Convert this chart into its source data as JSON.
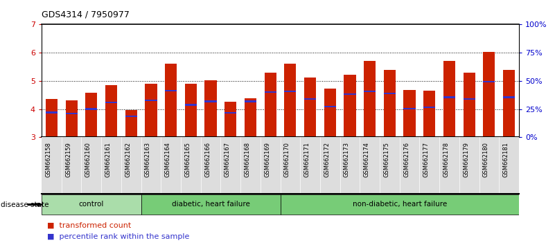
{
  "title": "GDS4314 / 7950977",
  "samples": [
    "GSM662158",
    "GSM662159",
    "GSM662160",
    "GSM662161",
    "GSM662162",
    "GSM662163",
    "GSM662164",
    "GSM662165",
    "GSM662166",
    "GSM662167",
    "GSM662168",
    "GSM662169",
    "GSM662170",
    "GSM662171",
    "GSM662172",
    "GSM662173",
    "GSM662174",
    "GSM662175",
    "GSM662176",
    "GSM662177",
    "GSM662178",
    "GSM662179",
    "GSM662180",
    "GSM662181"
  ],
  "bar_values": [
    4.35,
    4.32,
    4.57,
    4.85,
    3.97,
    4.9,
    5.6,
    4.9,
    5.01,
    4.25,
    4.37,
    5.3,
    5.6,
    5.12,
    4.72,
    5.22,
    5.72,
    5.38,
    4.67,
    4.65,
    5.72,
    5.28,
    6.02,
    5.38
  ],
  "percentile_values": [
    3.88,
    3.85,
    4.0,
    4.23,
    3.75,
    4.3,
    4.65,
    4.15,
    4.27,
    3.87,
    4.27,
    4.6,
    4.63,
    4.35,
    4.08,
    4.52,
    4.62,
    4.55,
    4.02,
    4.07,
    4.42,
    4.35,
    4.97,
    4.42
  ],
  "bar_color": "#cc2200",
  "percentile_color": "#3333cc",
  "ylim_left": [
    3,
    7
  ],
  "yticks_left": [
    3,
    4,
    5,
    6,
    7
  ],
  "ylim_right": [
    0,
    100
  ],
  "yticks_right": [
    0,
    25,
    50,
    75,
    100
  ],
  "ytick_labels_right": [
    "0%",
    "25%",
    "50%",
    "75%",
    "100%"
  ],
  "bar_width": 0.6,
  "background_color": "#ffffff",
  "plot_bg_color": "#ffffff",
  "yticklabel_color_left": "#cc0000",
  "yticklabel_color_right": "#0000cc",
  "groups": [
    {
      "label": "control",
      "start": 0,
      "end": 4,
      "color": "#aaddaa"
    },
    {
      "label": "diabetic, heart failure",
      "start": 5,
      "end": 11,
      "color": "#77cc77"
    },
    {
      "label": "non-diabetic, heart failure",
      "start": 12,
      "end": 23,
      "color": "#77cc77"
    }
  ],
  "disease_state_label": "disease state"
}
